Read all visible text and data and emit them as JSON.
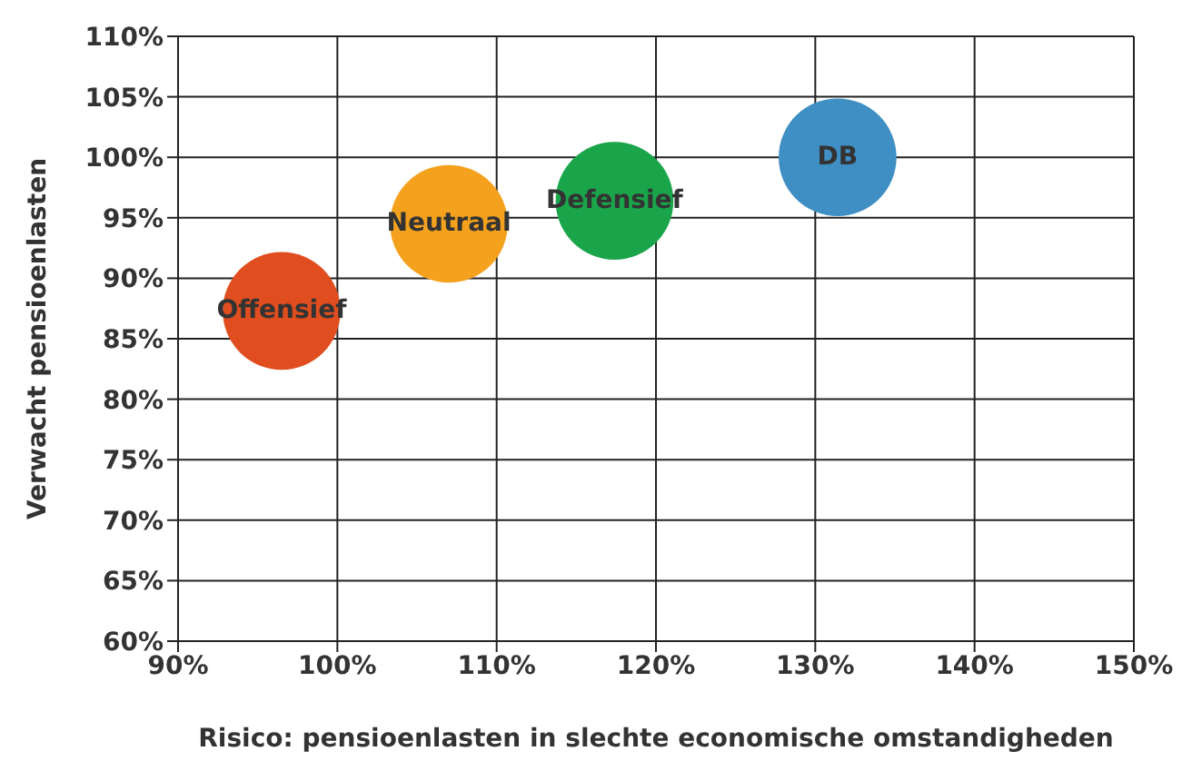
{
  "chart_data": {
    "type": "bubble",
    "xlabel": "Risico: pensioenlasten in slechte economische omstandigheden",
    "ylabel": "Verwacht pensioenlasten",
    "xlim": [
      90,
      150
    ],
    "xticks": [
      {
        "value": 90,
        "label": "90%"
      },
      {
        "value": 100,
        "label": "100%"
      },
      {
        "value": 110,
        "label": "110%"
      },
      {
        "value": 120,
        "label": "120%"
      },
      {
        "value": 130,
        "label": "130%"
      },
      {
        "value": 140,
        "label": "140%"
      },
      {
        "value": 150,
        "label": "150%"
      }
    ],
    "ylim": [
      60,
      110
    ],
    "yticks": [
      {
        "value": 60,
        "label": "60%"
      },
      {
        "value": 65,
        "label": "65%"
      },
      {
        "value": 70,
        "label": "70%"
      },
      {
        "value": 75,
        "label": "75%"
      },
      {
        "value": 80,
        "label": "80%"
      },
      {
        "value": 85,
        "label": "85%"
      },
      {
        "value": 90,
        "label": "90%"
      },
      {
        "value": 95,
        "label": "95%"
      },
      {
        "value": 100,
        "label": "100%"
      },
      {
        "value": 105,
        "label": "105%"
      },
      {
        "value": 110,
        "label": "110%"
      }
    ],
    "grid": true,
    "legend": false,
    "series": [
      {
        "name": "Offensief",
        "color": "#e04e1f",
        "x": [
          96.5
        ],
        "values": [
          87.3
        ],
        "sizes": [
          1
        ]
      },
      {
        "name": "Neutraal",
        "color": "#f4a11d",
        "x": [
          107
        ],
        "values": [
          94.5
        ],
        "sizes": [
          1
        ]
      },
      {
        "name": "Defensief",
        "color": "#1aa54b",
        "x": [
          117.4
        ],
        "values": [
          96.4
        ],
        "sizes": [
          1
        ]
      },
      {
        "name": "DB",
        "color": "#3f8fc4",
        "x": [
          131.4
        ],
        "values": [
          100
        ],
        "sizes": [
          1
        ]
      }
    ]
  }
}
